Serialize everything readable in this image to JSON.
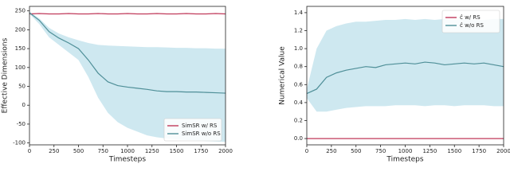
{
  "chart_data": [
    {
      "type": "line",
      "xlabel": "Timesteps",
      "ylabel": "Effective Dimensions",
      "x": [
        0,
        100,
        200,
        300,
        400,
        500,
        600,
        700,
        800,
        900,
        1000,
        1100,
        1200,
        1300,
        1400,
        1500,
        1600,
        1700,
        1800,
        1900,
        2000
      ],
      "xlim": [
        0,
        2000
      ],
      "xticks": [
        0,
        250,
        500,
        750,
        1000,
        1250,
        1500,
        1750,
        2000
      ],
      "ylim": [
        -105,
        262
      ],
      "yticks": [
        -100,
        -50,
        0,
        50,
        100,
        150,
        200,
        250
      ],
      "legend": "lower right",
      "series": [
        {
          "name": "SimSR w/ RS",
          "color": "#c0395a",
          "values": [
            242,
            243,
            242,
            242,
            243,
            242,
            242,
            243,
            242,
            242,
            243,
            242,
            242,
            243,
            242,
            242,
            243,
            242,
            242,
            243,
            242
          ]
        },
        {
          "name": "SimSR w/o RS",
          "color": "#4f8f98",
          "values": [
            245,
            225,
            195,
            178,
            165,
            150,
            120,
            85,
            62,
            52,
            48,
            45,
            42,
            38,
            36,
            36,
            35,
            35,
            34,
            33,
            32
          ],
          "lower": [
            242,
            215,
            180,
            160,
            140,
            120,
            75,
            20,
            -20,
            -45,
            -60,
            -70,
            -80,
            -85,
            -88,
            -90,
            -92,
            -93,
            -95,
            -96,
            -97
          ],
          "upper": [
            248,
            230,
            205,
            190,
            180,
            172,
            165,
            160,
            158,
            157,
            156,
            155,
            154,
            154,
            153,
            152,
            152,
            151,
            151,
            150,
            150
          ],
          "band_color": "#add8e6"
        }
      ]
    },
    {
      "type": "line",
      "xlabel": "Timesteps",
      "ylabel": "Numerical Value",
      "x": [
        0,
        100,
        200,
        300,
        400,
        500,
        600,
        700,
        800,
        900,
        1000,
        1100,
        1200,
        1300,
        1400,
        1500,
        1600,
        1700,
        1800,
        1900,
        2000
      ],
      "xlim": [
        0,
        2000
      ],
      "xticks": [
        0,
        250,
        500,
        750,
        1000,
        1250,
        1500,
        1750,
        2000
      ],
      "ylim": [
        -0.07,
        1.47
      ],
      "yticks": [
        {
          "value": 0,
          "label": "0.0"
        },
        {
          "value": 0.2,
          "label": "0.2"
        },
        {
          "value": 0.4,
          "label": "0.4"
        },
        {
          "value": 0.6,
          "label": "0.6"
        },
        {
          "value": 0.8,
          "label": "0.8"
        },
        {
          "value": 1,
          "label": "1.0"
        },
        {
          "value": 1.2,
          "label": "1.2"
        },
        {
          "value": 1.4,
          "label": "1.4"
        }
      ],
      "legend": "upper right",
      "series": [
        {
          "name": "ĉ w/ RS",
          "color": "#c0395a",
          "values": [
            0,
            0,
            0,
            0,
            0,
            0,
            0,
            0,
            0,
            0,
            0,
            0,
            0,
            0,
            0,
            0,
            0,
            0,
            0,
            0,
            0
          ]
        },
        {
          "name": "ĉ w/o RS",
          "color": "#4f8f98",
          "values": [
            0.5,
            0.55,
            0.68,
            0.73,
            0.76,
            0.78,
            0.8,
            0.79,
            0.82,
            0.83,
            0.84,
            0.83,
            0.85,
            0.84,
            0.82,
            0.83,
            0.84,
            0.83,
            0.84,
            0.82,
            0.8
          ],
          "lower": [
            0.45,
            0.3,
            0.3,
            0.32,
            0.34,
            0.35,
            0.36,
            0.36,
            0.36,
            0.37,
            0.37,
            0.37,
            0.36,
            0.37,
            0.37,
            0.36,
            0.37,
            0.37,
            0.37,
            0.36,
            0.36
          ],
          "upper": [
            0.55,
            1.0,
            1.2,
            1.25,
            1.28,
            1.3,
            1.3,
            1.31,
            1.32,
            1.32,
            1.33,
            1.32,
            1.33,
            1.32,
            1.33,
            1.32,
            1.33,
            1.32,
            1.32,
            1.33,
            1.33
          ],
          "band_color": "#add8e6"
        }
      ]
    }
  ]
}
